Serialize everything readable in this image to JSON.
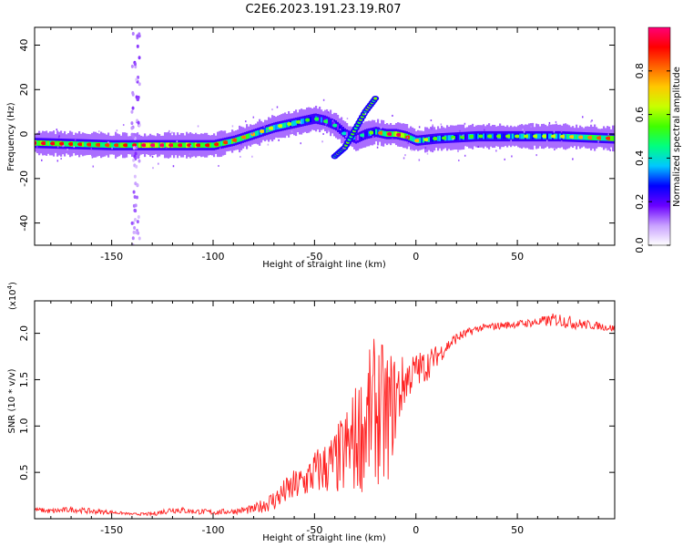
{
  "title": "C2E6.2023.191.23.19.R07",
  "chart_data": [
    {
      "type": "heatmap",
      "xlabel": "Height of straight line (km)",
      "ylabel": "Frequency (Hz)",
      "xlim": [
        -188,
        98
      ],
      "ylim": [
        -50,
        48
      ],
      "xticks": [
        -150,
        -100,
        -50,
        0,
        50
      ],
      "yticks": [
        -40,
        -20,
        0,
        20,
        40
      ],
      "colorbar": {
        "label": "Normalized spectral amplitude",
        "range": [
          0,
          1
        ],
        "ticks": [
          0.0,
          0.2,
          0.4,
          0.6,
          0.8
        ],
        "colors": [
          "#ffffff",
          "#c8a0ff",
          "#6a00ff",
          "#0000ff",
          "#00c8ff",
          "#00ff80",
          "#40ff00",
          "#c8ff00",
          "#ffc800",
          "#ff6400",
          "#ff0000",
          "#ff0078"
        ]
      },
      "ridge": {
        "x": [
          -188,
          -150,
          -130,
          -100,
          -90,
          -80,
          -70,
          -60,
          -55,
          -50,
          -45,
          -40,
          -35,
          -30,
          -25,
          -20,
          -15,
          -10,
          -5,
          0,
          10,
          30,
          50,
          70,
          98
        ],
        "frequency": [
          -4,
          -5,
          -5,
          -5,
          -3,
          0,
          3,
          5,
          6,
          7,
          6,
          4,
          0,
          -2,
          0,
          1,
          0,
          0,
          -1,
          -3,
          -2,
          -1,
          -1,
          -1,
          -2
        ],
        "amplitude": [
          0.9,
          0.8,
          0.95,
          0.85,
          0.8,
          0.7,
          0.6,
          0.55,
          0.5,
          0.45,
          0.45,
          0.4,
          0.35,
          0.35,
          0.4,
          0.6,
          0.9,
          0.95,
          0.85,
          0.7,
          0.5,
          0.5,
          0.55,
          0.6,
          0.85
        ]
      },
      "branch": {
        "x": [
          -40,
          -35,
          -30,
          -25,
          -20
        ],
        "frequency": [
          -10,
          -6,
          2,
          10,
          16
        ]
      },
      "vertical_stripe_x": -138
    },
    {
      "type": "line",
      "xlabel": "Height of straight line (km)",
      "ylabel": "SNR (10 * v/v)",
      "yscale_label": "(x10",
      "yscale_exp": "4",
      "yscale_close": ")",
      "xlim": [
        -188,
        98
      ],
      "ylim": [
        0,
        2.35
      ],
      "xticks": [
        -150,
        -100,
        -50,
        0,
        50
      ],
      "yticks": [
        0.5,
        1.0,
        1.5,
        2.0
      ],
      "yticklabels": [
        "0.5",
        "1.0",
        "1.5",
        "2.0"
      ],
      "series": [
        {
          "color": "#ff2020",
          "x": [
            -188,
            -180,
            -170,
            -160,
            -150,
            -140,
            -130,
            -120,
            -110,
            -100,
            -90,
            -80,
            -75,
            -70,
            -65,
            -60,
            -55,
            -50,
            -45,
            -40,
            -35,
            -30,
            -25,
            -20,
            -15,
            -10,
            -5,
            0,
            5,
            10,
            15,
            20,
            25,
            30,
            40,
            50,
            60,
            70,
            80,
            90,
            98
          ],
          "values": [
            0.1,
            0.08,
            0.1,
            0.08,
            0.07,
            0.05,
            0.05,
            0.1,
            0.08,
            0.07,
            0.08,
            0.1,
            0.15,
            0.2,
            0.28,
            0.35,
            0.4,
            0.5,
            0.55,
            0.6,
            0.7,
            0.85,
            1.0,
            1.2,
            1.05,
            1.3,
            1.5,
            1.6,
            1.65,
            1.75,
            1.85,
            1.95,
            2.0,
            2.05,
            2.08,
            2.1,
            2.12,
            2.15,
            2.1,
            2.08,
            2.05
          ],
          "noise": [
            0.02,
            0.03,
            0.03,
            0.03,
            0.02,
            0.01,
            0.02,
            0.04,
            0.03,
            0.03,
            0.03,
            0.05,
            0.08,
            0.12,
            0.15,
            0.18,
            0.2,
            0.25,
            0.3,
            0.35,
            0.5,
            0.6,
            0.7,
            0.8,
            0.8,
            0.5,
            0.25,
            0.2,
            0.18,
            0.12,
            0.08,
            0.06,
            0.05,
            0.04,
            0.04,
            0.04,
            0.05,
            0.08,
            0.06,
            0.04,
            0.04
          ]
        }
      ]
    }
  ]
}
